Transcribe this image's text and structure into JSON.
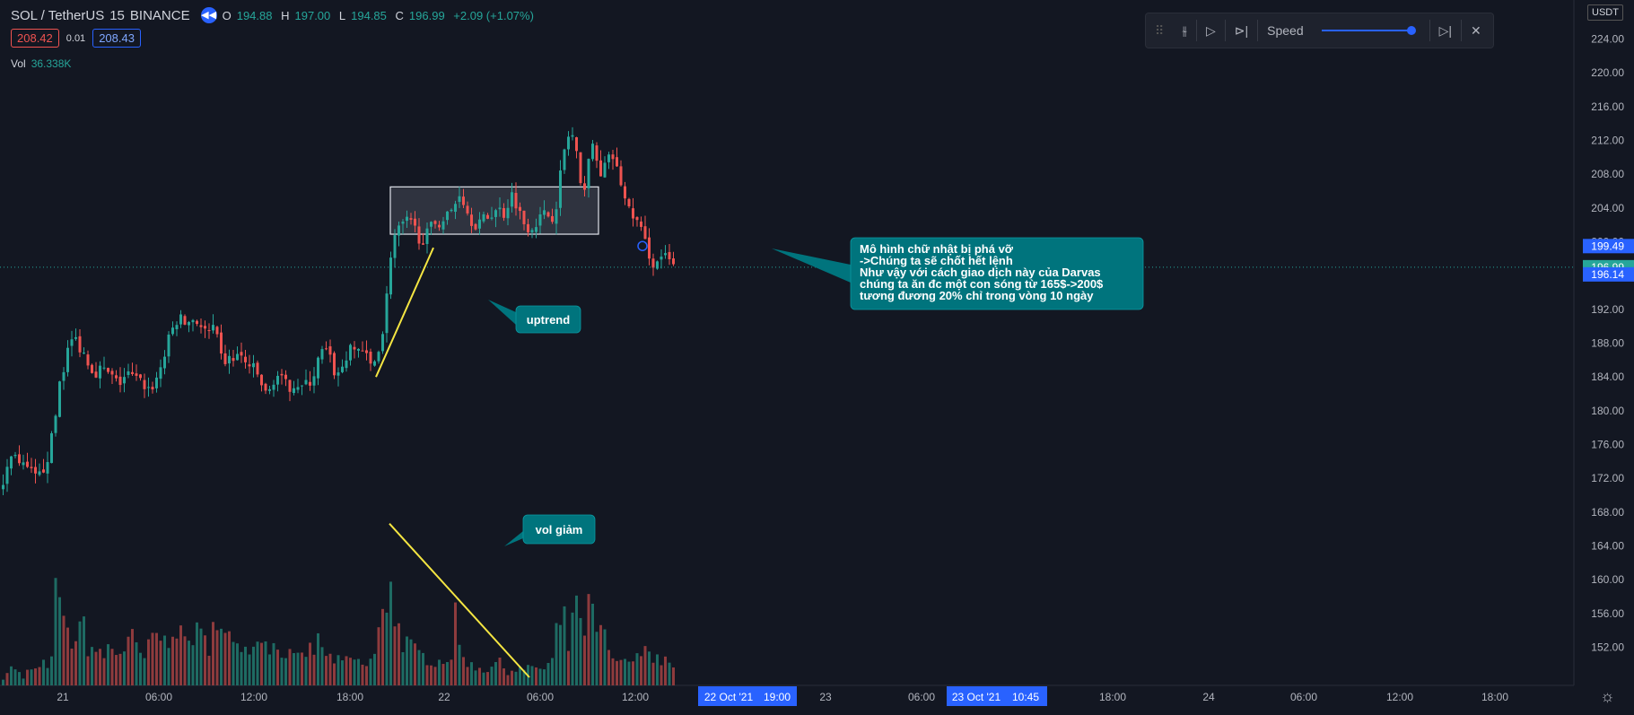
{
  "header": {
    "symbol": "SOL / TetherUS",
    "interval": "15",
    "exchange": "BINANCE",
    "ohlc": {
      "o_label": "O",
      "o": "194.88",
      "h_label": "H",
      "h": "197.00",
      "l_label": "L",
      "l": "194.85",
      "c_label": "C",
      "c": "196.99",
      "change": "+2.09 (+1.07%)"
    },
    "sell_price": "208.42",
    "spread": "0.01",
    "buy_price": "208.43",
    "volume_label": "Vol",
    "volume_value": "36.338K"
  },
  "replay_bar": {
    "speed_label": "Speed"
  },
  "currency": "USDT",
  "colors": {
    "up": "#26a69a",
    "down": "#ef5350",
    "background": "#131722",
    "annotation": "#00747d",
    "trendline": "#f5e642"
  },
  "chart_data": {
    "type": "candlestick",
    "y_ticks": [
      "224.00",
      "220.00",
      "216.00",
      "212.00",
      "208.00",
      "204.00",
      "200.00",
      "196.00",
      "192.00",
      "188.00",
      "184.00",
      "180.00",
      "176.00",
      "172.00",
      "168.00",
      "164.00",
      "160.00",
      "156.00",
      "152.00"
    ],
    "ylim": [
      149.5,
      226.5
    ],
    "x_ticks": [
      "21",
      "06:00",
      "12:00",
      "18:00",
      "22",
      "06:00",
      "12:00",
      "22 Oct '21",
      "19:00",
      "23",
      "06:00",
      "23 Oct '21",
      "10:45",
      "18:00",
      "24",
      "06:00",
      "12:00",
      "18:00"
    ],
    "price_labels": [
      {
        "value": "199.49",
        "color": "#2962ff"
      },
      {
        "value": "196.99",
        "color": "#26a69a"
      },
      {
        "value": "196.14",
        "color": "#2962ff"
      }
    ],
    "last_price": 196.99,
    "price_path": [
      [
        0,
        170.6
      ],
      [
        5,
        172.8
      ],
      [
        10,
        174.2
      ],
      [
        15,
        175.4
      ],
      [
        20,
        173.6
      ],
      [
        25,
        173.2
      ],
      [
        30,
        172.8
      ],
      [
        35,
        172.4
      ],
      [
        40,
        171.7
      ],
      [
        45,
        172.8
      ],
      [
        50,
        174.0
      ],
      [
        55,
        176.0
      ],
      [
        60,
        179.0
      ],
      [
        65,
        183.5
      ],
      [
        70,
        185.4
      ],
      [
        75,
        187.5
      ],
      [
        80,
        188.6
      ],
      [
        85,
        188.2
      ],
      [
        90,
        187.0
      ],
      [
        95,
        186.5
      ],
      [
        100,
        185.0
      ],
      [
        105,
        184.7
      ],
      [
        110,
        184.9
      ],
      [
        115,
        184.6
      ],
      [
        120,
        184.3
      ],
      [
        125,
        183.7
      ],
      [
        130,
        183.1
      ],
      [
        135,
        183.8
      ],
      [
        140,
        184.3
      ],
      [
        145,
        184.1
      ],
      [
        150,
        183.6
      ],
      [
        155,
        183.4
      ],
      [
        160,
        183.0
      ],
      [
        165,
        182.5
      ],
      [
        170,
        183.2
      ],
      [
        175,
        184.3
      ],
      [
        180,
        186.0
      ],
      [
        185,
        187.8
      ],
      [
        190,
        189.5
      ],
      [
        195,
        190.6
      ],
      [
        200,
        190.8
      ],
      [
        205,
        190.3
      ],
      [
        210,
        190.6
      ],
      [
        215,
        191.0
      ],
      [
        220,
        190.4
      ],
      [
        225,
        189.6
      ],
      [
        230,
        188.9
      ],
      [
        235,
        189.8
      ],
      [
        240,
        188.5
      ],
      [
        245,
        186.2
      ],
      [
        250,
        185.9
      ],
      [
        255,
        186.0
      ],
      [
        260,
        186.3
      ],
      [
        265,
        186.7
      ],
      [
        270,
        185.7
      ],
      [
        275,
        185.5
      ],
      [
        280,
        185.0
      ],
      [
        285,
        184.3
      ],
      [
        290,
        183.1
      ],
      [
        295,
        181.8
      ],
      [
        300,
        182.5
      ],
      [
        305,
        184.3
      ],
      [
        310,
        184.0
      ],
      [
        315,
        183.1
      ],
      [
        320,
        182.8
      ],
      [
        325,
        183.3
      ],
      [
        330,
        183.2
      ],
      [
        335,
        182.8
      ],
      [
        340,
        183.0
      ],
      [
        345,
        183.6
      ],
      [
        350,
        184.8
      ],
      [
        355,
        186.5
      ],
      [
        360,
        187.3
      ],
      [
        365,
        186.4
      ],
      [
        370,
        184.9
      ],
      [
        375,
        184.1
      ],
      [
        380,
        185.3
      ],
      [
        385,
        186.6
      ],
      [
        390,
        187.1
      ],
      [
        395,
        187.3
      ],
      [
        400,
        187.5
      ],
      [
        405,
        186.8
      ],
      [
        410,
        185.2
      ],
      [
        415,
        185.5
      ],
      [
        420,
        187.5
      ],
      [
        425,
        189.3
      ],
      [
        430,
        194.0
      ],
      [
        435,
        199.8
      ],
      [
        440,
        201.0
      ],
      [
        445,
        201.6
      ],
      [
        450,
        202.4
      ],
      [
        455,
        202.1
      ],
      [
        460,
        201.7
      ],
      [
        465,
        200.6
      ],
      [
        470,
        200.4
      ],
      [
        475,
        200.9
      ],
      [
        480,
        201.9
      ],
      [
        485,
        202.5
      ],
      [
        490,
        202.3
      ],
      [
        495,
        202.9
      ],
      [
        500,
        203.4
      ],
      [
        505,
        204.3
      ],
      [
        510,
        206.0
      ],
      [
        515,
        204.9
      ],
      [
        520,
        203.3
      ],
      [
        525,
        202.5
      ],
      [
        530,
        202.1
      ],
      [
        535,
        202.4
      ],
      [
        540,
        202.7
      ],
      [
        545,
        203.3
      ],
      [
        550,
        203.7
      ],
      [
        555,
        203.8
      ],
      [
        560,
        203.4
      ],
      [
        565,
        204.7
      ],
      [
        570,
        205.8
      ],
      [
        575,
        204.3
      ],
      [
        580,
        202.6
      ],
      [
        585,
        202.0
      ],
      [
        590,
        201.8
      ],
      [
        595,
        202.3
      ],
      [
        600,
        202.7
      ],
      [
        605,
        203.2
      ],
      [
        610,
        203.2
      ],
      [
        615,
        203.1
      ],
      [
        620,
        205.3
      ],
      [
        625,
        209.5
      ],
      [
        630,
        212.2
      ],
      [
        635,
        212.9
      ],
      [
        640,
        211.2
      ],
      [
        645,
        206.1
      ],
      [
        650,
        206.9
      ],
      [
        655,
        210.3
      ],
      [
        660,
        211.2
      ],
      [
        665,
        208.6
      ],
      [
        670,
        208.3
      ],
      [
        675,
        209.1
      ],
      [
        680,
        210.6
      ],
      [
        685,
        208.7
      ],
      [
        690,
        207.3
      ],
      [
        695,
        205.0
      ],
      [
        700,
        203.5
      ],
      [
        705,
        203.1
      ],
      [
        710,
        202.0
      ],
      [
        715,
        200.6
      ],
      [
        720,
        199.2
      ],
      [
        725,
        197.7
      ],
      [
        730,
        197.2
      ],
      [
        735,
        198.4
      ],
      [
        740,
        198.0
      ],
      [
        745,
        197.6
      ],
      [
        750,
        197.0
      ]
    ],
    "volume_path": [
      [
        0,
        300
      ],
      [
        8,
        900
      ],
      [
        16,
        1000
      ],
      [
        24,
        300
      ],
      [
        32,
        1000
      ],
      [
        40,
        800
      ],
      [
        48,
        1200
      ],
      [
        56,
        1300
      ],
      [
        60,
        5800
      ],
      [
        64,
        3700
      ],
      [
        68,
        4800
      ],
      [
        72,
        3200
      ],
      [
        76,
        2200
      ],
      [
        80,
        2800
      ],
      [
        84,
        2500
      ],
      [
        88,
        2900
      ],
      [
        92,
        3400
      ],
      [
        96,
        2200
      ],
      [
        100,
        2100
      ],
      [
        104,
        2000
      ],
      [
        108,
        1900
      ],
      [
        112,
        1400
      ],
      [
        120,
        2200
      ],
      [
        128,
        1800
      ],
      [
        136,
        2000
      ],
      [
        144,
        2800
      ],
      [
        152,
        1800
      ],
      [
        160,
        1500
      ],
      [
        168,
        2600
      ],
      [
        176,
        2900
      ],
      [
        184,
        2200
      ],
      [
        192,
        3800
      ],
      [
        200,
        2600
      ],
      [
        208,
        2500
      ],
      [
        216,
        3000
      ],
      [
        224,
        2500
      ],
      [
        232,
        2300
      ],
      [
        236,
        4700
      ],
      [
        240,
        2900
      ],
      [
        248,
        2700
      ],
      [
        256,
        2400
      ],
      [
        264,
        3100
      ],
      [
        272,
        2000
      ],
      [
        280,
        2700
      ],
      [
        288,
        2200
      ],
      [
        292,
        3300
      ],
      [
        300,
        2200
      ],
      [
        308,
        2000
      ],
      [
        316,
        2000
      ],
      [
        324,
        1500
      ],
      [
        332,
        1400
      ],
      [
        340,
        1900
      ],
      [
        348,
        2000
      ],
      [
        352,
        2200
      ],
      [
        356,
        2900
      ],
      [
        360,
        1400
      ],
      [
        368,
        1600
      ],
      [
        376,
        1300
      ],
      [
        384,
        1300
      ],
      [
        392,
        1500
      ],
      [
        400,
        1200
      ],
      [
        408,
        1100
      ],
      [
        416,
        1700
      ],
      [
        422,
        3200
      ],
      [
        426,
        3900
      ],
      [
        430,
        4700
      ],
      [
        434,
        7000
      ],
      [
        438,
        3800
      ],
      [
        442,
        3400
      ],
      [
        446,
        2500
      ],
      [
        450,
        2400
      ],
      [
        456,
        2100
      ],
      [
        462,
        1800
      ],
      [
        470,
        1600
      ],
      [
        478,
        1500
      ],
      [
        486,
        1300
      ],
      [
        494,
        1500
      ],
      [
        502,
        1700
      ],
      [
        506,
        3600
      ],
      [
        510,
        2100
      ],
      [
        516,
        1600
      ],
      [
        524,
        1100
      ],
      [
        532,
        1000
      ],
      [
        540,
        800
      ],
      [
        548,
        1300
      ],
      [
        556,
        1200
      ],
      [
        564,
        800
      ],
      [
        572,
        900
      ],
      [
        580,
        900
      ],
      [
        588,
        900
      ],
      [
        596,
        1100
      ],
      [
        604,
        800
      ],
      [
        612,
        1300
      ],
      [
        616,
        1400
      ],
      [
        620,
        3800
      ],
      [
        624,
        3400
      ],
      [
        628,
        3500
      ],
      [
        632,
        2100
      ],
      [
        636,
        4400
      ],
      [
        640,
        5000
      ],
      [
        644,
        2900
      ],
      [
        648,
        3100
      ],
      [
        652,
        3600
      ],
      [
        656,
        4800
      ],
      [
        660,
        3300
      ],
      [
        664,
        2700
      ],
      [
        668,
        3300
      ],
      [
        672,
        2700
      ],
      [
        676,
        1700
      ],
      [
        680,
        1400
      ],
      [
        684,
        1300
      ],
      [
        688,
        1600
      ],
      [
        692,
        1200
      ],
      [
        696,
        1200
      ],
      [
        700,
        1500
      ],
      [
        704,
        1100
      ],
      [
        708,
        2000
      ],
      [
        712,
        2200
      ],
      [
        716,
        2600
      ],
      [
        720,
        1900
      ],
      [
        724,
        1500
      ],
      [
        728,
        1600
      ],
      [
        732,
        1300
      ],
      [
        736,
        1400
      ],
      [
        740,
        1500
      ],
      [
        744,
        1100
      ],
      [
        748,
        900
      ],
      [
        752,
        800
      ]
    ],
    "volume_max": 7300,
    "rectangle": {
      "x_start": 435,
      "x_end": 667,
      "y_top": 206.5,
      "y_bottom": 200.9
    },
    "trendlines": [
      {
        "name": "uptrend-line",
        "pane": "price",
        "p1": [
          419,
          184.0
        ],
        "p2": [
          483,
          199.3
        ]
      },
      {
        "name": "volume-decline-line",
        "pane": "volume",
        "p1": [
          434,
          7000
        ],
        "p2": [
          590,
          350
        ]
      }
    ],
    "marker": {
      "x": 716,
      "y": 199.5
    },
    "annotations": [
      {
        "name": "uptrend-callout",
        "lines": [
          "uptrend"
        ]
      },
      {
        "name": "vol-callout",
        "lines": [
          "vol giảm"
        ]
      },
      {
        "name": "breakout-callout",
        "lines": [
          "Mô hình chữ nhật bị phá vỡ",
          "->Chúng ta sẽ chốt hết lệnh",
          "Như vậy với cách giao dịch này của Darvas",
          " chúng ta ăn đc một con sóng từ 165$->200$",
          "tương đương 20% chỉ trong vòng 10 ngày"
        ]
      }
    ]
  }
}
